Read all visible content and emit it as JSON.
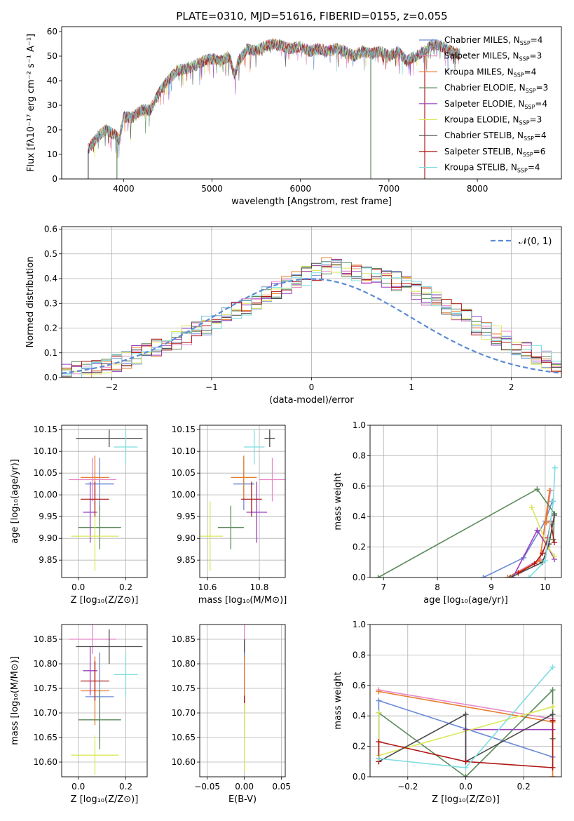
{
  "figure": {
    "title": "PLATE=0310, MJD=51616, FIBERID=0155, z=0.055"
  },
  "chart_data": [
    {
      "id": "spectrum",
      "type": "line",
      "xlabel": "wavelength [Angstrom, rest frame]",
      "ylabel": "Flux [fλ10⁻¹⁷ erg cm⁻² s⁻¹ A⁻¹]",
      "xlim": [
        3300,
        8950
      ],
      "ylim": [
        0,
        62
      ],
      "xticks": [
        4000,
        5000,
        6000,
        7000,
        8000
      ],
      "yticks": [
        0,
        10,
        20,
        30,
        40,
        50,
        60
      ],
      "grid": false,
      "legend_position": "upper-right",
      "series": [
        {
          "name": "Chabrier MILES, N",
          "sub": "SSP",
          "suffix": "=4",
          "color": "#6a8bd8"
        },
        {
          "name": "Salpeter MILES, N",
          "sub": "SSP",
          "suffix": "=3",
          "color": "#e788c8"
        },
        {
          "name": "Kroupa MILES, N",
          "sub": "SSP",
          "suffix": "=4",
          "color": "#e77d2e"
        },
        {
          "name": "Chabrier ELODIE, N",
          "sub": "SSP",
          "suffix": "=3",
          "color": "#5a8a5a"
        },
        {
          "name": "Salpeter ELODIE, N",
          "sub": "SSP",
          "suffix": "=4",
          "color": "#9b3fbf"
        },
        {
          "name": "Kroupa ELODIE, N",
          "sub": "SSP",
          "suffix": "=3",
          "color": "#dbe85a"
        },
        {
          "name": "Chabrier STELIB, N",
          "sub": "SSP",
          "suffix": "=4",
          "color": "#4a4a4a"
        },
        {
          "name": "Salpeter STELIB, N",
          "sub": "SSP",
          "suffix": "=6",
          "color": "#b01818"
        },
        {
          "name": "Kroupa STELIB, N",
          "sub": "SSP",
          "suffix": "=4",
          "color": "#7fdde0"
        }
      ],
      "profile": [
        [
          3600,
          12
        ],
        [
          3700,
          17
        ],
        [
          3800,
          20
        ],
        [
          3900,
          18
        ],
        [
          3950,
          16
        ],
        [
          4000,
          25
        ],
        [
          4100,
          25
        ],
        [
          4200,
          28
        ],
        [
          4300,
          28
        ],
        [
          4400,
          35
        ],
        [
          4500,
          40
        ],
        [
          4600,
          44
        ],
        [
          4700,
          45
        ],
        [
          4800,
          46
        ],
        [
          4900,
          48
        ],
        [
          5000,
          49
        ],
        [
          5100,
          48
        ],
        [
          5200,
          50
        ],
        [
          5250,
          42
        ],
        [
          5300,
          48
        ],
        [
          5400,
          53
        ],
        [
          5500,
          52
        ],
        [
          5600,
          54
        ],
        [
          5700,
          55
        ],
        [
          5800,
          54
        ],
        [
          5900,
          53
        ],
        [
          6000,
          54
        ],
        [
          6100,
          52
        ],
        [
          6200,
          53
        ],
        [
          6300,
          52
        ],
        [
          6400,
          53
        ],
        [
          6500,
          52
        ],
        [
          6600,
          50
        ],
        [
          6700,
          52
        ],
        [
          6800,
          51
        ],
        [
          6900,
          52
        ],
        [
          7000,
          50
        ],
        [
          7100,
          52
        ],
        [
          7200,
          48
        ],
        [
          7300,
          50
        ],
        [
          7400,
          52
        ],
        [
          7500,
          55
        ],
        [
          7600,
          54
        ],
        [
          7700,
          52
        ],
        [
          7800,
          51
        ]
      ]
    },
    {
      "id": "residuals",
      "type": "step",
      "xlabel": "(data-model)/error",
      "ylabel": "Normed distribution",
      "xlim": [
        -2.5,
        2.5
      ],
      "ylim": [
        0,
        0.61
      ],
      "xticks": [
        -2,
        -1,
        0,
        1,
        2
      ],
      "yticks": [
        0.0,
        0.1,
        0.2,
        0.3,
        0.4,
        0.5,
        0.6
      ],
      "grid": true,
      "legend_position": "upper-right",
      "reference": {
        "label": "𝒩(0, 1)",
        "mean": 0,
        "sigma": 1,
        "color": "#5b8bd4"
      },
      "bin_width": 0.1,
      "base_hist": [
        0.02,
        0.025,
        0.03,
        0.04,
        0.05,
        0.06,
        0.075,
        0.09,
        0.1,
        0.12,
        0.135,
        0.15,
        0.17,
        0.19,
        0.21,
        0.23,
        0.25,
        0.27,
        0.29,
        0.31,
        0.33,
        0.35,
        0.37,
        0.39,
        0.41,
        0.43,
        0.45,
        0.46,
        0.44,
        0.42,
        0.41,
        0.42,
        0.4,
        0.39,
        0.37,
        0.35,
        0.33,
        0.31,
        0.29,
        0.27,
        0.24,
        0.21,
        0.19,
        0.17,
        0.15,
        0.13,
        0.11,
        0.09,
        0.075,
        0.06
      ]
    },
    {
      "id": "age-z",
      "type": "errorbar",
      "xlabel": "Z [log₁₀(Z/Z⊙)]",
      "ylabel": "age  [log₁₀(age/yr)]",
      "xlim": [
        -0.07,
        0.29
      ],
      "ylim": [
        9.81,
        10.16
      ],
      "xticks": [
        0.0,
        0.2
      ],
      "yticks": [
        9.85,
        9.9,
        9.95,
        10.0,
        10.05,
        10.1,
        10.15
      ],
      "grid": true,
      "points": [
        {
          "color": "#6a8bd8",
          "x": 0.09,
          "xerr": 0.06,
          "y": 10.025,
          "yerr": 0.06
        },
        {
          "color": "#e788c8",
          "x": 0.06,
          "xerr": 0.1,
          "y": 10.035,
          "yerr": 0.05
        },
        {
          "color": "#e77d2e",
          "x": 0.07,
          "xerr": 0.06,
          "y": 10.04,
          "yerr": 0.05
        },
        {
          "color": "#5a8a5a",
          "x": 0.09,
          "xerr": 0.09,
          "y": 9.925,
          "yerr": 0.05
        },
        {
          "color": "#9b3fbf",
          "x": 0.05,
          "xerr": 0.03,
          "y": 9.96,
          "yerr": 0.07
        },
        {
          "color": "#dbe85a",
          "x": 0.07,
          "xerr": 0.1,
          "y": 9.905,
          "yerr": 0.08
        },
        {
          "color": "#4a4a4a",
          "x": 0.13,
          "xerr": 0.14,
          "y": 10.13,
          "yerr": 0.02
        },
        {
          "color": "#b01818",
          "x": 0.07,
          "xerr": 0.06,
          "y": 9.99,
          "yerr": 0.04
        },
        {
          "color": "#7fdde0",
          "x": 0.2,
          "xerr": 0.05,
          "y": 10.11,
          "yerr": 0.04
        }
      ]
    },
    {
      "id": "age-mass",
      "type": "errorbar",
      "xlabel": "mass [log₁₀(M/M⊙)]",
      "ylabel": "",
      "xlim": [
        10.57,
        10.9
      ],
      "ylim": [
        9.81,
        10.16
      ],
      "xticks": [
        10.6,
        10.8
      ],
      "yticks": [
        9.85,
        9.9,
        9.95,
        10.0,
        10.05,
        10.1,
        10.15
      ],
      "grid": true,
      "points": [
        {
          "color": "#6a8bd8",
          "x": 10.74,
          "xerr": 0.04,
          "y": 10.025,
          "yerr": 0.06
        },
        {
          "color": "#e788c8",
          "x": 10.85,
          "xerr": 0.05,
          "y": 10.035,
          "yerr": 0.05
        },
        {
          "color": "#e77d2e",
          "x": 10.74,
          "xerr": 0.05,
          "y": 10.04,
          "yerr": 0.05
        },
        {
          "color": "#5a8a5a",
          "x": 10.69,
          "xerr": 0.05,
          "y": 9.925,
          "yerr": 0.05
        },
        {
          "color": "#9b3fbf",
          "x": 10.79,
          "xerr": 0.04,
          "y": 9.96,
          "yerr": 0.07
        },
        {
          "color": "#dbe85a",
          "x": 10.61,
          "xerr": 0.05,
          "y": 9.905,
          "yerr": 0.08
        },
        {
          "color": "#4a4a4a",
          "x": 10.84,
          "xerr": 0.02,
          "y": 10.13,
          "yerr": 0.02
        },
        {
          "color": "#b01818",
          "x": 10.77,
          "xerr": 0.04,
          "y": 9.99,
          "yerr": 0.04
        },
        {
          "color": "#7fdde0",
          "x": 10.78,
          "xerr": 0.04,
          "y": 10.11,
          "yerr": 0.04
        }
      ]
    },
    {
      "id": "weight-age",
      "type": "line",
      "xlabel": "age  [log₁₀(age/yr)]",
      "ylabel": "mass weight",
      "xlim": [
        6.75,
        10.3
      ],
      "ylim": [
        0,
        1.0
      ],
      "xticks": [
        7,
        8,
        9,
        10
      ],
      "yticks": [
        0.0,
        0.2,
        0.4,
        0.6,
        0.8,
        1.0
      ],
      "grid": true,
      "series": [
        {
          "color": "#6a8bd8",
          "x": [
            8.85,
            9.6,
            10.0,
            10.13
          ],
          "y": [
            0.0,
            0.13,
            0.37,
            0.5
          ]
        },
        {
          "color": "#e788c8",
          "x": [
            9.3,
            9.9,
            10.1
          ],
          "y": [
            0.0,
            0.12,
            0.57
          ]
        },
        {
          "color": "#e77d2e",
          "x": [
            9.3,
            9.9,
            10.08,
            10.02
          ],
          "y": [
            0.0,
            0.11,
            0.57,
            0.36
          ]
        },
        {
          "color": "#5a8a5a",
          "x": [
            6.9,
            9.85,
            10.17,
            10.15
          ],
          "y": [
            0.0,
            0.58,
            0.42,
            0.25
          ]
        },
        {
          "color": "#9b3fbf",
          "x": [
            9.4,
            9.85,
            10.05,
            10.17
          ],
          "y": [
            0.0,
            0.31,
            0.2,
            0.12
          ]
        },
        {
          "color": "#dbe85a",
          "x": [
            9.75,
            10.05,
            10.17
          ],
          "y": [
            0.46,
            0.2,
            0.14
          ]
        },
        {
          "color": "#4a4a4a",
          "x": [
            9.35,
            9.95,
            10.07,
            10.17
          ],
          "y": [
            0.0,
            0.1,
            0.22,
            0.41
          ]
        },
        {
          "color": "#b01818",
          "x": [
            9.5,
            9.8,
            9.95,
            10.05,
            10.1,
            10.17
          ],
          "y": [
            0.03,
            0.09,
            0.16,
            0.26,
            0.37,
            0.23
          ]
        },
        {
          "color": "#7fdde0",
          "x": [
            9.7,
            10.0,
            10.15,
            10.18
          ],
          "y": [
            0.0,
            0.11,
            0.5,
            0.72
          ]
        }
      ]
    },
    {
      "id": "mass-z",
      "type": "errorbar",
      "xlabel": "Z [log₁₀(Z/Z⊙)]",
      "ylabel": "mass [log₁₀(M/M⊙)]",
      "xlim": [
        -0.07,
        0.29
      ],
      "ylim": [
        10.57,
        10.88
      ],
      "xticks": [
        0.0,
        0.2
      ],
      "yticks": [
        10.6,
        10.65,
        10.7,
        10.75,
        10.8,
        10.85
      ],
      "grid": true,
      "points": [
        {
          "color": "#6a8bd8",
          "x": 0.09,
          "xerr": 0.06,
          "y": 10.733,
          "yerr": 0.09
        },
        {
          "color": "#e788c8",
          "x": 0.06,
          "xerr": 0.1,
          "y": 10.85,
          "yerr": 0.03
        },
        {
          "color": "#e77d2e",
          "x": 0.07,
          "xerr": 0.06,
          "y": 10.745,
          "yerr": 0.07
        },
        {
          "color": "#5a8a5a",
          "x": 0.09,
          "xerr": 0.09,
          "y": 10.686,
          "yerr": 0.06
        },
        {
          "color": "#9b3fbf",
          "x": 0.05,
          "xerr": 0.03,
          "y": 10.786,
          "yerr": 0.05
        },
        {
          "color": "#dbe85a",
          "x": 0.07,
          "xerr": 0.1,
          "y": 10.614,
          "yerr": 0.04
        },
        {
          "color": "#4a4a4a",
          "x": 0.13,
          "xerr": 0.14,
          "y": 10.835,
          "yerr": 0.035
        },
        {
          "color": "#b01818",
          "x": 0.07,
          "xerr": 0.06,
          "y": 10.765,
          "yerr": 0.04
        },
        {
          "color": "#7fdde0",
          "x": 0.2,
          "xerr": 0.05,
          "y": 10.778,
          "yerr": 0.045
        }
      ]
    },
    {
      "id": "mass-ebv",
      "type": "errorbar",
      "xlabel": "E(B-V)",
      "ylabel": "",
      "xlim": [
        -0.06,
        0.055
      ],
      "ylim": [
        10.57,
        10.88
      ],
      "xticks": [
        -0.05,
        0.0,
        0.05
      ],
      "yticks": [
        10.6,
        10.65,
        10.7,
        10.75,
        10.8,
        10.85
      ],
      "grid": true,
      "points": [
        {
          "color": "#e788c8",
          "x": 0.0,
          "xerr": 0,
          "y": 10.85,
          "yerr": 0.03
        },
        {
          "color": "#4a4a4a",
          "x": 0.0,
          "xerr": 0,
          "y": 10.83,
          "yerr": 0.02
        },
        {
          "color": "#6a8bd8",
          "x": 0.0,
          "xerr": 0,
          "y": 10.733,
          "yerr": 0.09
        },
        {
          "color": "#e77d2e",
          "x": 0.0,
          "xerr": 0,
          "y": 10.745,
          "yerr": 0.07
        },
        {
          "color": "#b01818",
          "x": 0.0,
          "xerr": 0,
          "y": 10.72,
          "yerr": 0.015
        },
        {
          "color": "#dbe85a",
          "x": 0.0,
          "xerr": 0,
          "y": 10.65,
          "yerr": 0.07
        }
      ]
    },
    {
      "id": "weight-z",
      "type": "line",
      "xlabel": "Z [log₁₀(Z/Z⊙)]",
      "ylabel": "mass weight",
      "xlim": [
        -0.33,
        0.33
      ],
      "ylim": [
        0,
        1.0
      ],
      "xticks": [
        -0.2,
        0.0,
        0.2
      ],
      "yticks": [
        0.0,
        0.2,
        0.4,
        0.6,
        0.8,
        1.0
      ],
      "grid": true,
      "series": [
        {
          "color": "#6a8bd8",
          "x": [
            -0.3,
            -0.3,
            0.3
          ],
          "y": [
            0.12,
            0.5,
            0.13
          ]
        },
        {
          "color": "#e788c8",
          "x": [
            -0.3,
            0.3
          ],
          "y": [
            0.57,
            0.38
          ]
        },
        {
          "color": "#e77d2e",
          "x": [
            -0.3,
            0.3,
            0.3
          ],
          "y": [
            0.56,
            0.36,
            0.0
          ]
        },
        {
          "color": "#5a8a5a",
          "x": [
            -0.3,
            -0.3,
            0.0,
            0.3,
            0.3
          ],
          "y": [
            0.12,
            0.42,
            0.0,
            0.57,
            0.25
          ]
        },
        {
          "color": "#9b3fbf",
          "x": [
            0.0,
            0.0,
            0.3
          ],
          "y": [
            0.1,
            0.31,
            0.31
          ]
        },
        {
          "color": "#dbe85a",
          "x": [
            -0.3,
            -0.3,
            0.3
          ],
          "y": [
            0.42,
            0.14,
            0.46
          ]
        },
        {
          "color": "#4a4a4a",
          "x": [
            -0.3,
            0.0,
            0.0,
            0.3
          ],
          "y": [
            0.1,
            0.41,
            0.1,
            0.41
          ]
        },
        {
          "color": "#b01818",
          "x": [
            -0.3,
            -0.3,
            0.0,
            0.3,
            0.3
          ],
          "y": [
            0.1,
            0.23,
            0.1,
            0.06,
            0.37
          ]
        },
        {
          "color": "#7fdde0",
          "x": [
            -0.3,
            0.0,
            0.3
          ],
          "y": [
            0.12,
            0.06,
            0.72
          ]
        }
      ]
    }
  ]
}
